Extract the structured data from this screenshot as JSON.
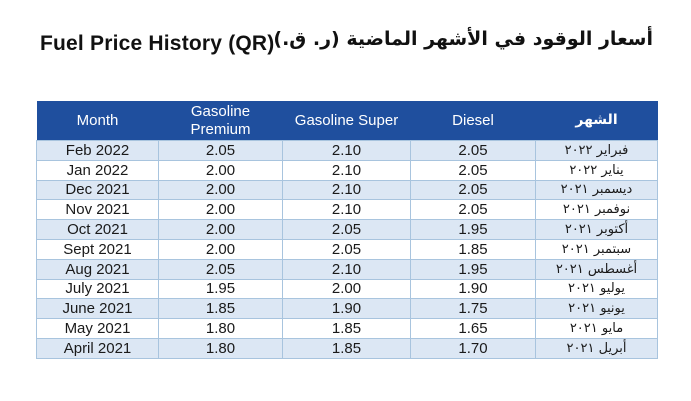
{
  "header": {
    "title_en": "Fuel Price History (QR)",
    "title_ar": "أسعار الوقود في الأشهر الماضية (ر. ق.)"
  },
  "table": {
    "columns": [
      {
        "key": "month",
        "label": "Month"
      },
      {
        "key": "gasoline_premium",
        "label": "Gasoline Premium"
      },
      {
        "key": "gasoline_super",
        "label": "Gasoline Super"
      },
      {
        "key": "diesel",
        "label": "Diesel"
      },
      {
        "key": "month_ar",
        "label": "الشهر"
      }
    ],
    "rows": [
      {
        "month": "Feb 2022",
        "gasoline_premium": "2.05",
        "gasoline_super": "2.10",
        "diesel": "2.05",
        "month_ar": "فبراير ٢٠٢٢"
      },
      {
        "month": "Jan 2022",
        "gasoline_premium": "2.00",
        "gasoline_super": "2.10",
        "diesel": "2.05",
        "month_ar": "يناير ٢٠٢٢"
      },
      {
        "month": "Dec 2021",
        "gasoline_premium": "2.00",
        "gasoline_super": "2.10",
        "diesel": "2.05",
        "month_ar": "ديسمبر ٢٠٢١"
      },
      {
        "month": "Nov 2021",
        "gasoline_premium": "2.00",
        "gasoline_super": "2.10",
        "diesel": "2.05",
        "month_ar": "نوفمبر ٢٠٢١"
      },
      {
        "month": "Oct 2021",
        "gasoline_premium": "2.00",
        "gasoline_super": "2.05",
        "diesel": "1.95",
        "month_ar": "أكتوبر ٢٠٢١"
      },
      {
        "month": "Sept 2021",
        "gasoline_premium": "2.00",
        "gasoline_super": "2.05",
        "diesel": "1.85",
        "month_ar": "سبتمبر ٢٠٢١"
      },
      {
        "month": "Aug 2021",
        "gasoline_premium": "2.05",
        "gasoline_super": "2.10",
        "diesel": "1.95",
        "month_ar": "أغسطس ٢٠٢١"
      },
      {
        "month": "July 2021",
        "gasoline_premium": "1.95",
        "gasoline_super": "2.00",
        "diesel": "1.90",
        "month_ar": "يوليو ٢٠٢١"
      },
      {
        "month": "June 2021",
        "gasoline_premium": "1.85",
        "gasoline_super": "1.90",
        "diesel": "1.75",
        "month_ar": "يونيو ٢٠٢١"
      },
      {
        "month": "May 2021",
        "gasoline_premium": "1.80",
        "gasoline_super": "1.85",
        "diesel": "1.65",
        "month_ar": "مايو ٢٠٢١"
      },
      {
        "month": "April 2021",
        "gasoline_premium": "1.80",
        "gasoline_super": "1.85",
        "diesel": "1.70",
        "month_ar": "أبريل ٢٠٢١"
      }
    ]
  },
  "colors": {
    "header_bg": "#1F4F9E",
    "header_text": "#FFFFFF",
    "row_alt_bg": "#DCE7F4",
    "border": "#A8C4DE",
    "body_text": "#1A1A1A"
  }
}
